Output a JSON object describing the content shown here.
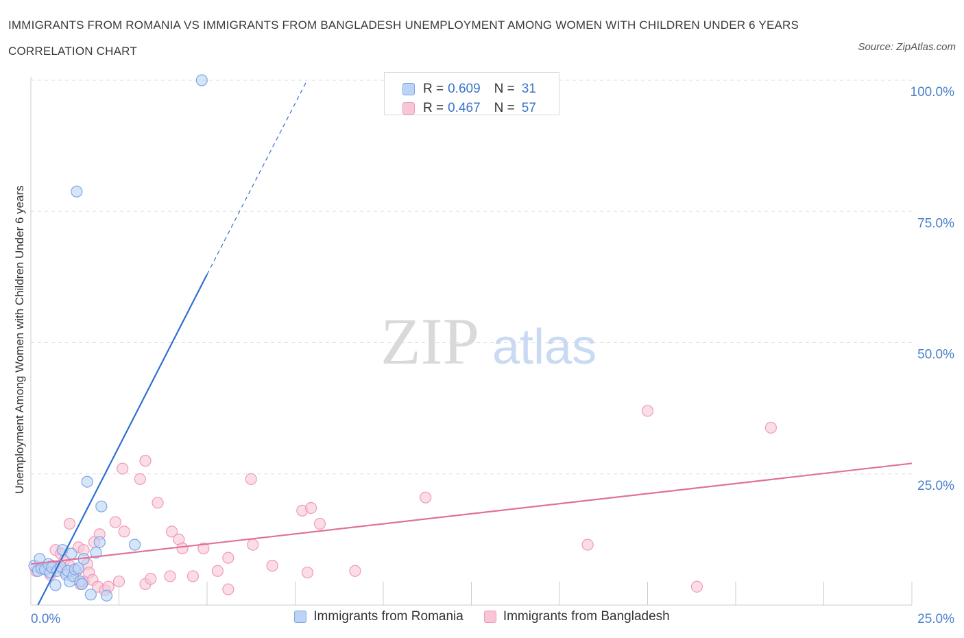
{
  "header": {
    "title": "IMMIGRANTS FROM ROMANIA VS IMMIGRANTS FROM BANGLADESH UNEMPLOYMENT AMONG WOMEN WITH CHILDREN UNDER 6 YEARS CORRELATION CHART",
    "source": "Source: ZipAtlas.com"
  },
  "stats": {
    "romania": {
      "r_label": "R =",
      "r_value": "0.609",
      "n_label": "N =",
      "n_value": "31"
    },
    "bangladesh": {
      "r_label": "R =",
      "r_value": "0.467",
      "n_label": "N =",
      "n_value": "57"
    }
  },
  "watermark": {
    "zip": "ZIP",
    "atlas": "atlas"
  },
  "colors": {
    "romania_fill": "#bcd3f5",
    "romania_stroke": "#7aa7e6",
    "romania_line": "#2f6fce",
    "bangladesh_fill": "#f8c6d6",
    "bangladesh_stroke": "#ee9ab7",
    "bangladesh_line": "#e0709a",
    "tick_label": "#4a7fcb",
    "grid": "#dddddd"
  },
  "chart_data": {
    "type": "scatter",
    "title": "IMMIGRANTS FROM ROMANIA VS IMMIGRANTS FROM BANGLADESH UNEMPLOYMENT AMONG WOMEN WITH CHILDREN UNDER 6 YEARS CORRELATION CHART",
    "xlabel": "",
    "ylabel": "Unemployment Among Women with Children Under 6 years",
    "xlim": [
      0,
      25
    ],
    "ylim": [
      0,
      100
    ],
    "x_tick_labels": [
      {
        "value": 0,
        "label": "0.0%"
      },
      {
        "value": 25,
        "label": "25.0%"
      }
    ],
    "y_tick_labels": [
      {
        "value": 25,
        "label": "25.0%"
      },
      {
        "value": 50,
        "label": "50.0%"
      },
      {
        "value": 75,
        "label": "75.0%"
      },
      {
        "value": 100,
        "label": "100.0%"
      }
    ],
    "grid": true,
    "legend_position": "bottom-center",
    "series": [
      {
        "name": "Immigrants from Romania",
        "points": [
          [
            0.1,
            7.5
          ],
          [
            0.2,
            6.5
          ],
          [
            0.25,
            8.8
          ],
          [
            0.3,
            7.0
          ],
          [
            0.4,
            6.8
          ],
          [
            0.5,
            7.8
          ],
          [
            0.55,
            6.2
          ],
          [
            0.6,
            7.2
          ],
          [
            0.7,
            3.8
          ],
          [
            0.75,
            6.5
          ],
          [
            0.85,
            7.3
          ],
          [
            0.9,
            10.5
          ],
          [
            1.0,
            5.8
          ],
          [
            1.05,
            6.5
          ],
          [
            1.1,
            4.5
          ],
          [
            1.15,
            9.8
          ],
          [
            1.2,
            5.5
          ],
          [
            1.25,
            6.8
          ],
          [
            1.35,
            7.0
          ],
          [
            1.4,
            4.5
          ],
          [
            1.5,
            8.8
          ],
          [
            1.6,
            23.5
          ],
          [
            1.7,
            2.0
          ],
          [
            1.85,
            10.0
          ],
          [
            1.95,
            12.0
          ],
          [
            2.0,
            18.8
          ],
          [
            2.15,
            1.8
          ],
          [
            2.95,
            11.5
          ],
          [
            4.85,
            100.0
          ],
          [
            1.3,
            78.8
          ],
          [
            1.45,
            4.0
          ]
        ],
        "trend": {
          "x_start": 0.2,
          "y_start": 0.0,
          "x_solid_end": 5.0,
          "y_solid_end": 63.0,
          "x_dash_end": 7.8,
          "y_dash_end": 99.5
        }
      },
      {
        "name": "Immigrants from Bangladesh",
        "points": [
          [
            0.15,
            6.5
          ],
          [
            0.3,
            7.2
          ],
          [
            0.45,
            6.8
          ],
          [
            0.6,
            7.5
          ],
          [
            0.7,
            10.5
          ],
          [
            0.8,
            7.0
          ],
          [
            0.85,
            9.8
          ],
          [
            0.95,
            8.5
          ],
          [
            1.0,
            6.2
          ],
          [
            1.1,
            7.5
          ],
          [
            1.1,
            15.5
          ],
          [
            1.2,
            5.5
          ],
          [
            1.3,
            6.5
          ],
          [
            1.35,
            11.0
          ],
          [
            1.4,
            4.0
          ],
          [
            1.5,
            10.5
          ],
          [
            1.5,
            4.5
          ],
          [
            1.6,
            7.8
          ],
          [
            1.65,
            6.2
          ],
          [
            1.75,
            4.8
          ],
          [
            1.8,
            12.0
          ],
          [
            1.9,
            3.5
          ],
          [
            1.95,
            13.5
          ],
          [
            2.1,
            2.8
          ],
          [
            2.2,
            3.5
          ],
          [
            2.4,
            15.8
          ],
          [
            2.5,
            4.5
          ],
          [
            2.6,
            26.0
          ],
          [
            2.65,
            14.0
          ],
          [
            3.1,
            24.0
          ],
          [
            3.25,
            27.5
          ],
          [
            3.25,
            4.0
          ],
          [
            3.4,
            5.0
          ],
          [
            3.6,
            19.5
          ],
          [
            3.95,
            5.5
          ],
          [
            4.0,
            14.0
          ],
          [
            4.2,
            12.5
          ],
          [
            4.3,
            10.8
          ],
          [
            4.6,
            5.5
          ],
          [
            4.9,
            10.8
          ],
          [
            5.3,
            6.5
          ],
          [
            5.6,
            9.0
          ],
          [
            5.6,
            3.0
          ],
          [
            6.25,
            24.0
          ],
          [
            6.3,
            11.5
          ],
          [
            6.85,
            7.5
          ],
          [
            7.7,
            18.0
          ],
          [
            7.85,
            6.2
          ],
          [
            7.95,
            18.5
          ],
          [
            8.2,
            15.5
          ],
          [
            9.2,
            6.5
          ],
          [
            11.2,
            20.5
          ],
          [
            15.8,
            11.5
          ],
          [
            17.5,
            37.0
          ],
          [
            18.9,
            3.5
          ],
          [
            21.0,
            33.8
          ],
          [
            0.55,
            5.8
          ]
        ],
        "trend": {
          "x_start": 0.0,
          "y_start": 7.8,
          "x_end": 25.0,
          "y_end": 27.0
        }
      }
    ]
  }
}
